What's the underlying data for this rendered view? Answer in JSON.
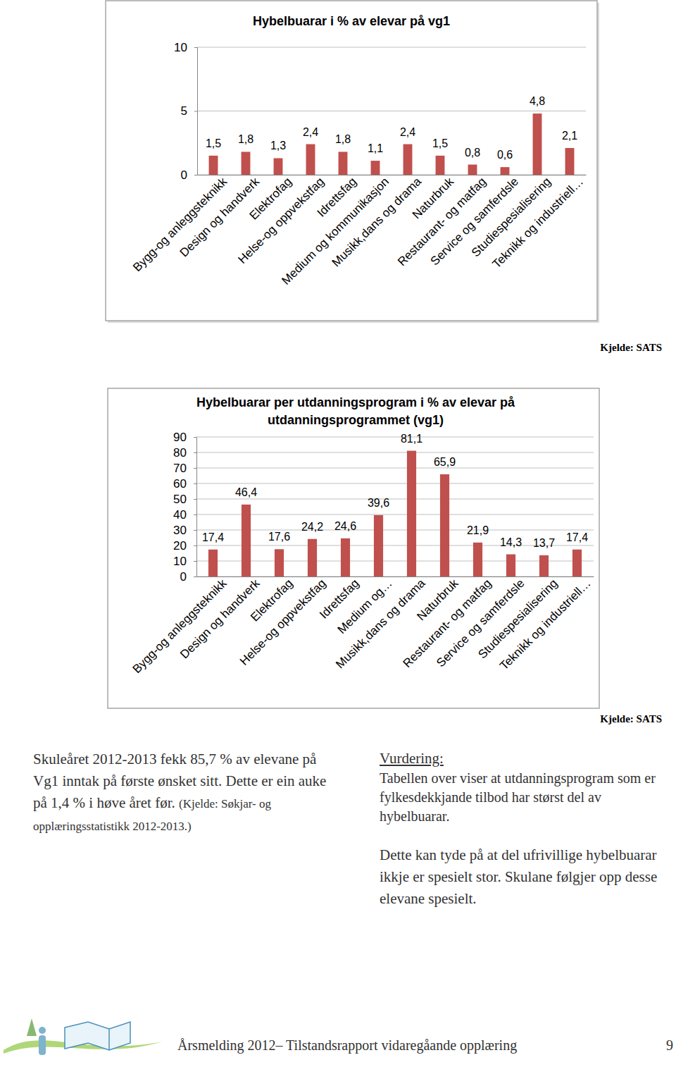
{
  "chart_data": [
    {
      "type": "bar",
      "title": "Hybelbuarar i % av elevar på vg1",
      "categories": [
        "Bygg-og anleggsteknikk",
        "Design og handverk",
        "Elektrofag",
        "Helse-og oppvekstfag",
        "Idrettsfag",
        "Medium og kommunikasjon",
        "Musikk,dans og drama",
        "Naturbruk",
        "Restaurant- og matfag",
        "Service og samferdsle",
        "Studiespesialisering",
        "Teknikk og industriell…"
      ],
      "values": [
        1.5,
        1.8,
        1.3,
        2.4,
        1.8,
        1.1,
        2.4,
        1.5,
        0.8,
        0.6,
        4.8,
        2.1
      ],
      "value_labels": [
        "1,5",
        "1,8",
        "1,3",
        "2,4",
        "1,8",
        "1,1",
        "2,4",
        "1,5",
        "0,8",
        "0,6",
        "4,8",
        "2,1"
      ],
      "color": "#c0504d",
      "ylim": [
        0,
        10
      ],
      "yticks": [
        0,
        5,
        10
      ],
      "grid": true,
      "data_labels": true
    },
    {
      "type": "bar",
      "title": "Hybelbuarar per utdanningsprogram i % av elevar på utdanningsprogrammet (vg1)",
      "categories": [
        "Bygg-og anleggsteknikk",
        "Design og handverk",
        "Elektrofag",
        "Helse-og oppvekstfag",
        "Idrettsfag",
        "Medium og…",
        "Musikk,dans og drama",
        "Naturbruk",
        "Restaurant- og matfag",
        "Service og samferdsle",
        "Studiespesialisering",
        "Teknikk og industriell…"
      ],
      "values": [
        17.4,
        46.4,
        17.6,
        24.2,
        24.6,
        39.6,
        81.1,
        65.9,
        21.9,
        14.3,
        13.7,
        17.4
      ],
      "value_labels": [
        "17,4",
        "46,4",
        "17,6",
        "24,2",
        "24,6",
        "39,6",
        "81,1",
        "65,9",
        "21,9",
        "14,3",
        "13,7",
        "17,4"
      ],
      "color": "#c0504d",
      "ylim": [
        0,
        90
      ],
      "yticks": [
        0,
        10,
        20,
        30,
        40,
        50,
        60,
        70,
        80,
        90
      ],
      "grid": true,
      "data_labels": true
    }
  ],
  "sources": [
    "Kjelde: SATS",
    "Kjelde: SATS"
  ],
  "text": {
    "paragraph": "Skuleåret 2012-2013 fekk 85,7 % av elevane på Vg1 inntak på første ønsket sitt. Dette er ein auke på 1,4 % i høve året før.",
    "paragraph_source": "(Kjelde: Søkjar- og opplæringsstatistikk 2012-2013.)",
    "assessment_heading": "Vurdering:",
    "assessment": [
      "Tabellen over viser at utdanningsprogram som er fylkesdekkjande tilbod har størst del av hybelbuarar.",
      "Dette kan tyde på at del ufrivillige hybelbuarar ikkje er spesielt stor. Skulane følgjer opp desse elevane spesielt."
    ]
  },
  "footer": {
    "title": "Årsmelding 2012– Tilstandsrapport vidaregåande opplæring",
    "page": "9"
  }
}
